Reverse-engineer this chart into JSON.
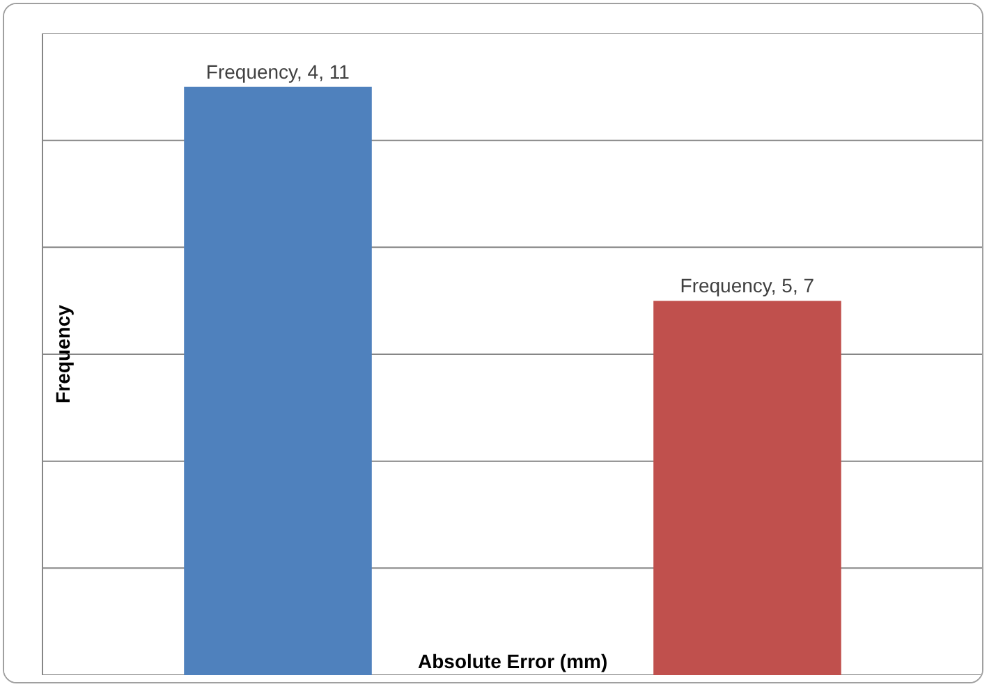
{
  "chart_data": {
    "type": "bar",
    "xlabel": "Absolute Error (mm)",
    "ylabel": "Frequency",
    "categories": [
      null,
      null
    ],
    "values": [
      11,
      7
    ],
    "colors": [
      "#4f81bd",
      "#c0504d"
    ],
    "value_labels": [
      "Frequency, 4, 11",
      "Frequency, 5, 7"
    ],
    "ylim": [
      0,
      12
    ],
    "yticks": [
      {
        "value": 0,
        "label": null
      },
      {
        "value": 2,
        "label": null
      },
      {
        "value": 4,
        "label": null
      },
      {
        "value": 6,
        "label": null
      },
      {
        "value": 8,
        "label": null
      },
      {
        "value": 10,
        "label": null
      },
      {
        "value": 12,
        "label": null
      }
    ],
    "grid": "y",
    "tick_labels": false,
    "legend": false
  }
}
